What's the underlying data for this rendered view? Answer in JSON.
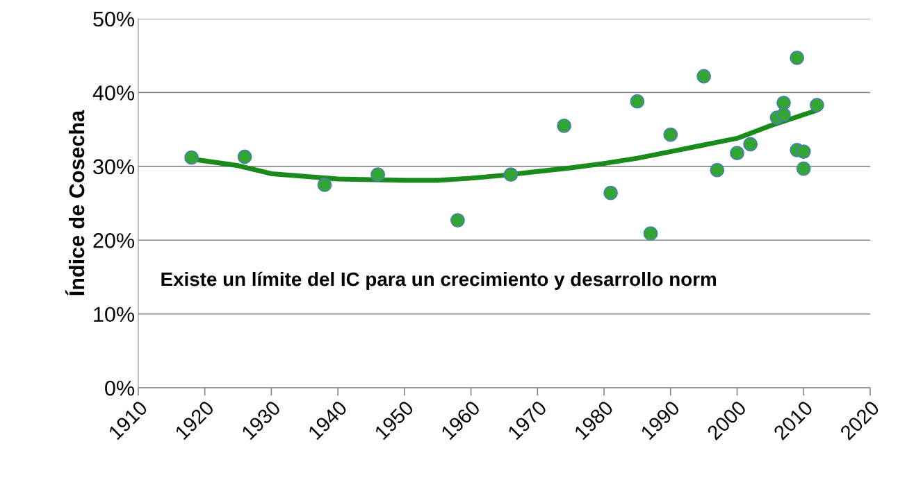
{
  "chart_data": {
    "type": "scatter",
    "ylabel": "Índice de Cosecha",
    "xlim": [
      1910,
      2020
    ],
    "xticks": [
      1910,
      1920,
      1930,
      1940,
      1950,
      1960,
      1970,
      1980,
      1990,
      2000,
      2010,
      2020
    ],
    "ylim": [
      0,
      50
    ],
    "yticks": [
      {
        "value": 0,
        "label": "0%"
      },
      {
        "value": 10,
        "label": "10%"
      },
      {
        "value": 20,
        "label": "20%"
      },
      {
        "value": 30,
        "label": "30%"
      },
      {
        "value": 40,
        "label": "40%"
      },
      {
        "value": 50,
        "label": "50%"
      }
    ],
    "grid": "y",
    "marker": "circle",
    "series": [
      {
        "color": "#33a532",
        "x": [
          1918,
          1926,
          1938,
          1946,
          1958,
          1966,
          1974,
          1981,
          1985,
          1987,
          1990,
          1995,
          1997,
          2000,
          2002,
          2006,
          2007,
          2007,
          2009,
          2009,
          2010,
          2010,
          2012
        ],
        "values": [
          31.2,
          31.3,
          27.5,
          28.9,
          22.7,
          28.9,
          35.5,
          26.4,
          38.8,
          20.9,
          34.3,
          42.2,
          29.5,
          31.8,
          33.0,
          36.6,
          38.6,
          37.0,
          44.7,
          32.2,
          32.0,
          29.7,
          38.3
        ]
      },
      {
        "type": "line",
        "color": "#1a8a1a",
        "line_style": "solid",
        "marker": "none",
        "x": [
          1918,
          1925,
          1930,
          1940,
          1945,
          1950,
          1955,
          1960,
          1965,
          1970,
          1975,
          1980,
          1985,
          1990,
          1995,
          2000,
          2005,
          2012
        ],
        "values": [
          31.0,
          30.1,
          29.0,
          28.3,
          28.2,
          28.1,
          28.1,
          28.4,
          28.8,
          29.3,
          29.8,
          30.4,
          31.1,
          32.0,
          32.9,
          33.8,
          35.5,
          37.6
        ]
      }
    ],
    "annotations": [
      "Existe un límite del IC para un crecimiento y desarrollo norm"
    ]
  }
}
